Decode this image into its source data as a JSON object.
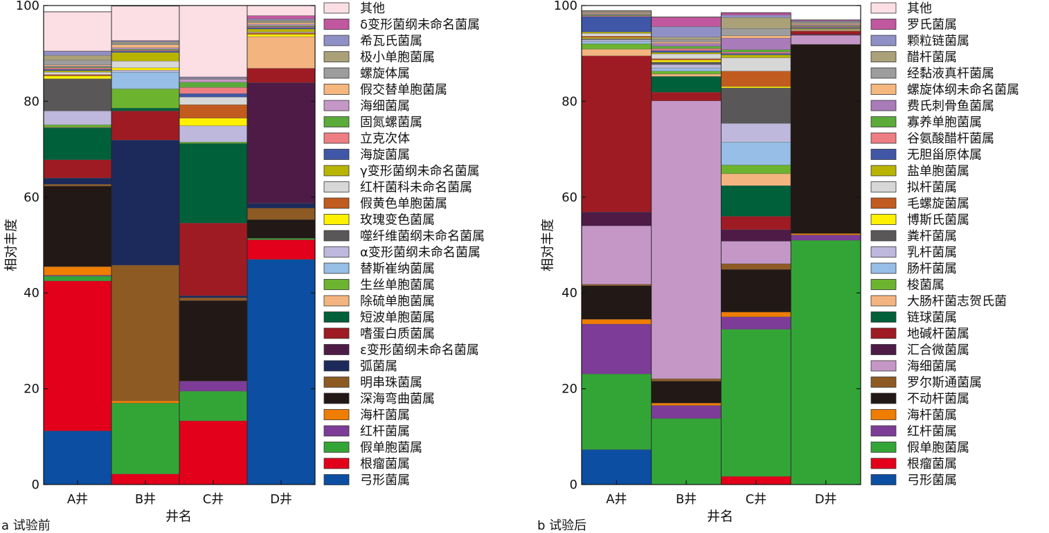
{
  "figure": {
    "panels": [
      {
        "id": "a",
        "caption": "a 试验前",
        "ylabel": "相对丰度",
        "xlabel": "井名"
      },
      {
        "id": "b",
        "caption": "b 试验后",
        "ylabel": "相对丰度",
        "xlabel": "井名"
      }
    ]
  },
  "chart_data": [
    {
      "type": "bar",
      "stacked": true,
      "title": "",
      "caption": "a 试验前",
      "xlabel": "井名",
      "ylabel": "相对丰度",
      "ylim": [
        0,
        100
      ],
      "yticks": [
        0,
        20,
        40,
        60,
        80,
        100
      ],
      "grid": false,
      "legend_position": "right",
      "categories": [
        "A井",
        "B井",
        "C井",
        "D井"
      ],
      "series": [
        {
          "name": "弓形菌属",
          "color": "#0b4ea2",
          "values": [
            11.2,
            0,
            0,
            47.0
          ]
        },
        {
          "name": "根瘤菌属",
          "color": "#e2001a",
          "values": [
            31.3,
            2.2,
            13.3,
            4.1
          ]
        },
        {
          "name": "假单胞菌属",
          "color": "#33a537",
          "values": [
            1.0,
            14.8,
            6.2,
            0.3
          ]
        },
        {
          "name": "红杆菌属",
          "color": "#7d3c97",
          "values": [
            0.2,
            0,
            2.1,
            0
          ]
        },
        {
          "name": "海杆菌属",
          "color": "#ee7d00",
          "values": [
            1.8,
            0.5,
            0,
            0
          ]
        },
        {
          "name": "深海弯曲菌属",
          "color": "#221815",
          "values": [
            16.8,
            0,
            16.8,
            3.9
          ]
        },
        {
          "name": "明串珠菌属",
          "color": "#8e5a24",
          "values": [
            0.4,
            28.3,
            0.6,
            2.4
          ]
        },
        {
          "name": "弧菌属",
          "color": "#1b2a5a",
          "values": [
            1.3,
            26.1,
            0.4,
            1.0
          ]
        },
        {
          "name": "ε变形菌纲未命名菌属",
          "color": "#4e1b47",
          "values": [
            0,
            0,
            0,
            25.2
          ]
        },
        {
          "name": "嗜蛋白质菌属",
          "color": "#9e1b23",
          "values": [
            3.8,
            6.1,
            15.2,
            3.0
          ]
        },
        {
          "name": "短波单胞菌属",
          "color": "#00603a",
          "values": [
            6.7,
            0.6,
            16.6,
            0
          ]
        },
        {
          "name": "除硫单胞菌属",
          "color": "#f4b47f",
          "values": [
            0.1,
            0,
            0,
            6.6
          ]
        },
        {
          "name": "生丝单胞菌属",
          "color": "#6cb42f",
          "values": [
            0.5,
            4.0,
            0.3,
            0
          ]
        },
        {
          "name": "替斯崔纳菌属",
          "color": "#96bee6",
          "values": [
            0,
            3.5,
            0,
            0
          ]
        },
        {
          "name": "α变形菌纲未命名菌属",
          "color": "#bdb8dc",
          "values": [
            2.9,
            0.4,
            3.4,
            0
          ]
        },
        {
          "name": "噬纤维菌纲未命名菌属",
          "color": "#595757",
          "values": [
            6.7,
            0,
            0,
            0
          ]
        },
        {
          "name": "玫瑰变色菌属",
          "color": "#fff000",
          "values": [
            0.6,
            0.5,
            1.6,
            0.5
          ]
        },
        {
          "name": "假黄色单胞菌属",
          "color": "#c25b1f",
          "values": [
            0.3,
            0,
            2.8,
            0.3
          ]
        },
        {
          "name": "红杆菌科未命名菌属",
          "color": "#d7d7d7",
          "values": [
            0.5,
            1.4,
            1.6,
            0.2
          ]
        },
        {
          "name": "γ变形菌纲未命名菌属",
          "color": "#b8b400",
          "values": [
            0.3,
            1.8,
            0,
            0.6
          ]
        },
        {
          "name": "海旋菌属",
          "color": "#3f57a6",
          "values": [
            0.3,
            0.3,
            0.7,
            0.3
          ]
        },
        {
          "name": "立克次体",
          "color": "#ed7e83",
          "values": [
            0.3,
            0.2,
            1.3,
            0.2
          ]
        },
        {
          "name": "固氮螺菌属",
          "color": "#5aab3a",
          "values": [
            0.2,
            0.2,
            1.1,
            0.2
          ]
        },
        {
          "name": "海细菌属",
          "color": "#c597c7",
          "values": [
            0.2,
            0.3,
            0.6,
            0.3
          ]
        },
        {
          "name": "假交替单胞菌属",
          "color": "#f6b77e",
          "values": [
            0.2,
            0.6,
            0,
            0.3
          ]
        },
        {
          "name": "螺旋体属",
          "color": "#9d9d9d",
          "values": [
            1.0,
            0.3,
            0.2,
            0.2
          ]
        },
        {
          "name": "极小单胞菌属",
          "color": "#aaa178",
          "values": [
            1.0,
            0.3,
            0,
            0.3
          ]
        },
        {
          "name": "希瓦氏菌属",
          "color": "#8f91c6",
          "values": [
            0.8,
            0.2,
            0.2,
            0.3
          ]
        },
        {
          "name": "δ变形菌纲未命名菌属",
          "color": "#c1579e",
          "values": [
            0.1,
            0.1,
            0.1,
            0.7
          ]
        },
        {
          "name": "其他",
          "color": "#fbdfe4",
          "values": [
            8.2,
            7.2,
            14.9,
            2.7
          ]
        }
      ]
    },
    {
      "type": "bar",
      "stacked": true,
      "title": "",
      "caption": "b 试验后",
      "xlabel": "井名",
      "ylabel": "相对丰度",
      "ylim": [
        0,
        100
      ],
      "yticks": [
        0,
        20,
        40,
        60,
        80,
        100
      ],
      "grid": false,
      "legend_position": "right",
      "categories": [
        "A井",
        "B井",
        "C井",
        "D井"
      ],
      "series": [
        {
          "name": "弓形菌属",
          "color": "#0b4ea2",
          "values": [
            7.3,
            0,
            0,
            0
          ]
        },
        {
          "name": "根瘤菌属",
          "color": "#e2001a",
          "values": [
            0,
            0,
            1.7,
            0
          ]
        },
        {
          "name": "假单胞菌属",
          "color": "#33a537",
          "values": [
            15.8,
            13.8,
            30.7,
            51.0
          ]
        },
        {
          "name": "红杆菌属",
          "color": "#7d3c97",
          "values": [
            10.4,
            2.7,
            2.6,
            1.1
          ]
        },
        {
          "name": "海杆菌属",
          "color": "#ee7d00",
          "values": [
            1.0,
            0.5,
            1.0,
            0.3
          ]
        },
        {
          "name": "不动杆菌属",
          "color": "#221815",
          "values": [
            7.0,
            4.6,
            8.9,
            39.5
          ]
        },
        {
          "name": "罗尔斯通菌属",
          "color": "#8e5a24",
          "values": [
            0.3,
            0.5,
            1.2,
            0
          ]
        },
        {
          "name": "海细菌属",
          "color": "#c597c7",
          "values": [
            12.2,
            58.0,
            4.7,
            1.9
          ]
        },
        {
          "name": "汇合微菌属",
          "color": "#4e1b47",
          "values": [
            2.9,
            0,
            2.4,
            0.2
          ]
        },
        {
          "name": "地碱杆菌属",
          "color": "#9e1b23",
          "values": [
            32.6,
            1.8,
            2.8,
            0.6
          ]
        },
        {
          "name": "链球菌属",
          "color": "#00603a",
          "values": [
            0,
            3.3,
            6.4,
            0
          ]
        },
        {
          "name": "大肠杆菌志贺氏菌",
          "color": "#f4b47f",
          "values": [
            1.4,
            0.5,
            2.5,
            0
          ]
        },
        {
          "name": "梭菌属",
          "color": "#6cb42f",
          "values": [
            1.1,
            0.6,
            1.8,
            0
          ]
        },
        {
          "name": "肠杆菌属",
          "color": "#96bee6",
          "values": [
            0.5,
            0.6,
            4.8,
            0
          ]
        },
        {
          "name": "乳杆菌属",
          "color": "#bdb8dc",
          "values": [
            0.4,
            0.8,
            3.9,
            0
          ]
        },
        {
          "name": "粪杆菌属",
          "color": "#595757",
          "values": [
            0.2,
            0.5,
            7.4,
            0
          ]
        },
        {
          "name": "博斯氏菌属",
          "color": "#fff000",
          "values": [
            0.2,
            0.4,
            0.3,
            0
          ]
        },
        {
          "name": "毛螺旋菌属",
          "color": "#c25b1f",
          "values": [
            0.3,
            0.3,
            3.2,
            0.2
          ]
        },
        {
          "name": "拟杆菌属",
          "color": "#d7d7d7",
          "values": [
            0.6,
            1.0,
            2.8,
            0.2
          ]
        },
        {
          "name": "盐单胞菌属",
          "color": "#b8b400",
          "values": [
            0.3,
            0.3,
            0.6,
            0.2
          ]
        },
        {
          "name": "无胆甾原体属",
          "color": "#3f57a6",
          "values": [
            3.2,
            0.4,
            0.3,
            0.2
          ]
        },
        {
          "name": "谷氨酸醋杆菌属",
          "color": "#ed7e83",
          "values": [
            0.2,
            0.4,
            0.3,
            0.2
          ]
        },
        {
          "name": "寡养单胞菌属",
          "color": "#5aab3a",
          "values": [
            0.2,
            0.5,
            0.5,
            0.2
          ]
        },
        {
          "name": "费氏刺骨鱼菌属",
          "color": "#a97bb8",
          "values": [
            0.2,
            0.6,
            2.4,
            0.2
          ]
        },
        {
          "name": "螺旋体纲未命名菌属",
          "color": "#f6b77e",
          "values": [
            0.2,
            0.3,
            0.5,
            0.2
          ]
        },
        {
          "name": "经黏液真杆菌属",
          "color": "#9d9d9d",
          "values": [
            0.2,
            0.5,
            1.5,
            0.2
          ]
        },
        {
          "name": "醋杆菌属",
          "color": "#aaa178",
          "values": [
            0.2,
            0.5,
            2.3,
            0.2
          ]
        },
        {
          "name": "颗粒链菌属",
          "color": "#8f91c6",
          "values": [
            0,
            2.2,
            0.5,
            0.2
          ]
        },
        {
          "name": "罗氏菌属",
          "color": "#c1579e",
          "values": [
            0,
            2.0,
            0.5,
            0.2
          ]
        },
        {
          "name": "其他",
          "color": "#fbdfe4",
          "values": [
            0,
            0,
            0,
            0
          ]
        }
      ]
    }
  ]
}
